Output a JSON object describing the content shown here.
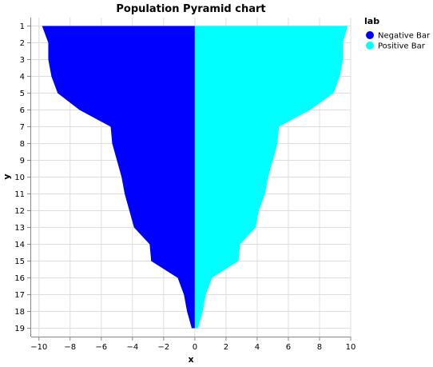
{
  "chart_data": {
    "type": "area",
    "title": "Population Pyramid chart",
    "xlabel": "x",
    "ylabel": "y",
    "xlim": [
      -10.5,
      10
    ],
    "x_ticks": [
      "−10",
      "−8",
      "−6",
      "−4",
      "−2",
      "0",
      "2",
      "4",
      "6",
      "8",
      "10"
    ],
    "x_tick_values": [
      -10,
      -8,
      -6,
      -4,
      -2,
      0,
      2,
      4,
      6,
      8,
      10
    ],
    "categories": [
      "1",
      "2",
      "3",
      "4",
      "5",
      "6",
      "7",
      "8",
      "9",
      "10",
      "11",
      "12",
      "13",
      "14",
      "15",
      "16",
      "17",
      "18",
      "19"
    ],
    "grid": true,
    "legend": {
      "title": "lab",
      "placement": "top-right",
      "entries": [
        "Negative Bar",
        "Positive Bar"
      ]
    },
    "series": [
      {
        "name": "Negative Bar",
        "color": "#0000ff",
        "values": [
          -9.8,
          -9.4,
          -9.4,
          -9.2,
          -8.8,
          -7.4,
          -5.4,
          -5.3,
          -5.0,
          -4.7,
          -4.5,
          -4.2,
          -3.9,
          -2.9,
          -2.8,
          -1.1,
          -0.7,
          -0.5,
          -0.2
        ]
      },
      {
        "name": "Positive Bar",
        "color": "#00ffff",
        "values": [
          9.8,
          9.5,
          9.5,
          9.3,
          8.9,
          7.4,
          5.4,
          5.3,
          5.0,
          4.7,
          4.5,
          4.1,
          3.9,
          2.9,
          2.8,
          1.1,
          0.7,
          0.5,
          0.2
        ]
      }
    ]
  }
}
